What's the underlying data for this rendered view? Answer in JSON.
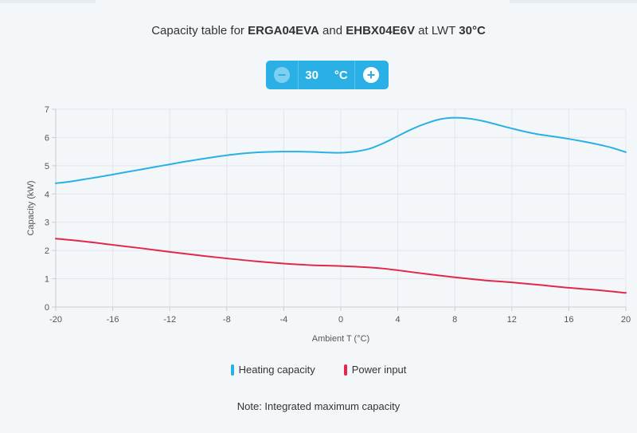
{
  "header": {
    "title_prefix": "Capacity table for ",
    "model_1": "ERGA04EVA",
    "joiner": " and ",
    "model_2": "EHBX04E6V",
    "lwt_label": " at LWT ",
    "lwt_value": "30°C"
  },
  "stepper": {
    "value": "30",
    "unit": "°C",
    "minus_symbol": "−",
    "plus_symbol": "+"
  },
  "colors": {
    "heating": "#2ab0e4",
    "power": "#e0284a",
    "grid": "#e2e6ea",
    "axis": "#c8ccd0"
  },
  "chart_data": {
    "type": "line",
    "xlabel": "Ambient T (°C)",
    "ylabel": "Capacity (kW)",
    "xlim": [
      -20,
      20
    ],
    "ylim": [
      0,
      7
    ],
    "xticks": [
      -20,
      -16,
      -12,
      -8,
      -4,
      0,
      4,
      8,
      12,
      16,
      20
    ],
    "yticks": [
      0,
      1,
      2,
      3,
      4,
      5,
      6,
      7
    ],
    "grid": true,
    "legend_position": "bottom",
    "series": [
      {
        "name": "Heating capacity",
        "x": [
          -20,
          -19,
          -18,
          -17,
          -16,
          -15,
          -14,
          -13,
          -12,
          -11,
          -10,
          -9,
          -8,
          -7,
          -6,
          -5,
          -4,
          -3,
          -2,
          -1,
          0,
          1,
          2,
          3,
          4,
          5,
          6,
          7,
          8,
          9,
          10,
          11,
          12,
          13,
          14,
          15,
          16,
          17,
          18,
          19,
          20
        ],
        "values": [
          4.38,
          4.44,
          4.52,
          4.6,
          4.69,
          4.78,
          4.87,
          4.96,
          5.05,
          5.14,
          5.22,
          5.3,
          5.37,
          5.43,
          5.47,
          5.49,
          5.5,
          5.5,
          5.49,
          5.47,
          5.46,
          5.5,
          5.6,
          5.8,
          6.05,
          6.3,
          6.5,
          6.65,
          6.7,
          6.67,
          6.58,
          6.45,
          6.32,
          6.2,
          6.1,
          6.03,
          5.95,
          5.86,
          5.76,
          5.64,
          5.48
        ]
      },
      {
        "name": "Power input",
        "x": [
          -20,
          -18,
          -16,
          -14,
          -12,
          -10,
          -8,
          -6,
          -4,
          -2,
          0,
          2,
          3,
          4,
          6,
          8,
          10,
          12,
          14,
          16,
          18,
          20
        ],
        "values": [
          2.42,
          2.32,
          2.2,
          2.08,
          1.95,
          1.83,
          1.72,
          1.62,
          1.54,
          1.48,
          1.45,
          1.4,
          1.36,
          1.3,
          1.17,
          1.05,
          0.95,
          0.87,
          0.78,
          0.68,
          0.6,
          0.5
        ]
      }
    ]
  },
  "note": "Note: Integrated maximum capacity"
}
